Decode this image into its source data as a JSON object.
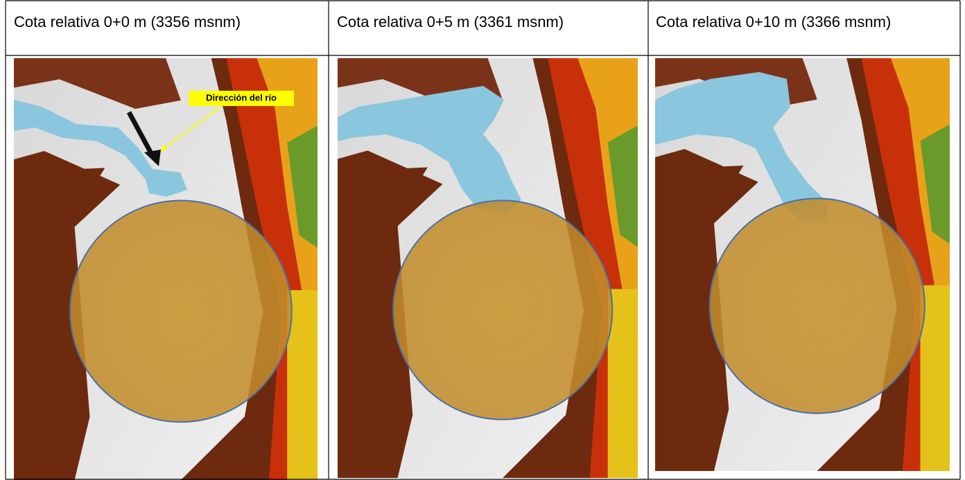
{
  "table": {
    "rows": [
      [
        "Cota relativa 0+0 m (3356 msnm)",
        "Cota relativa 0+5 m (3361 msnm)",
        "Cota relativa 0+10 m (3366 msnm)"
      ]
    ]
  },
  "annotation": {
    "label": "Dirección del río"
  }
}
